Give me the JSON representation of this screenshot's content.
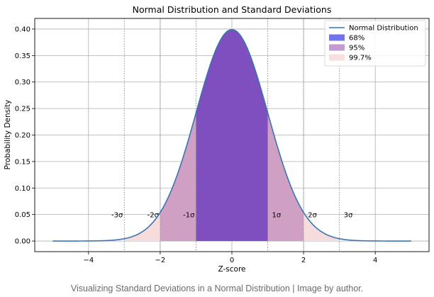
{
  "chart_data": {
    "type": "area",
    "title": "Normal Distribution and Standard Deviations",
    "xlabel": "Z-score",
    "ylabel": "Probability Density",
    "xlim": [
      -5.5,
      5.5
    ],
    "ylim": [
      -0.02,
      0.42
    ],
    "grid": true,
    "legend_position": "top-right",
    "x_ticks": [
      -4,
      -2,
      0,
      2,
      4
    ],
    "x_tick_labels": [
      "−4",
      "−2",
      "0",
      "2",
      "4"
    ],
    "y_ticks": [
      0.0,
      0.05,
      0.1,
      0.15,
      0.2,
      0.25,
      0.3,
      0.35,
      0.4
    ],
    "y_tick_labels": [
      "0.00",
      "0.05",
      "0.10",
      "0.15",
      "0.20",
      "0.25",
      "0.30",
      "0.35",
      "0.40"
    ],
    "curve": {
      "name": "Normal Distribution",
      "mean": 0,
      "std": 1,
      "x_range": [
        -5,
        5
      ],
      "color": "#3b75af"
    },
    "bands": [
      {
        "name": "99.7%",
        "range": [
          -3,
          3
        ],
        "color": "#f6dcdc"
      },
      {
        "name": "95%",
        "range": [
          -2,
          2
        ],
        "color": "#cfa0c4"
      },
      {
        "name": "68%",
        "range": [
          -1,
          1
        ],
        "color": "#7f4fc0"
      }
    ],
    "legend": [
      {
        "label": "Normal Distribution",
        "kind": "line",
        "color": "#3b75af"
      },
      {
        "label": "68%",
        "kind": "patch",
        "color": "#7373f0"
      },
      {
        "label": "95%",
        "kind": "patch",
        "color": "#c39bd2"
      },
      {
        "label": "99.7%",
        "kind": "patch",
        "color": "#f7dfdf"
      }
    ],
    "sigma_lines": [
      {
        "x": -3,
        "label": "-3σ",
        "side": "left"
      },
      {
        "x": -2,
        "label": "-2σ",
        "side": "left"
      },
      {
        "x": -1,
        "label": "-1σ",
        "side": "left"
      },
      {
        "x": 1,
        "label": "1σ",
        "side": "right"
      },
      {
        "x": 2,
        "label": "2σ",
        "side": "right"
      },
      {
        "x": 3,
        "label": "3σ",
        "side": "right"
      }
    ],
    "sigma_label_y": 0.05
  },
  "caption": "Visualizing Standard Deviations in a Normal Distribution | Image by author."
}
